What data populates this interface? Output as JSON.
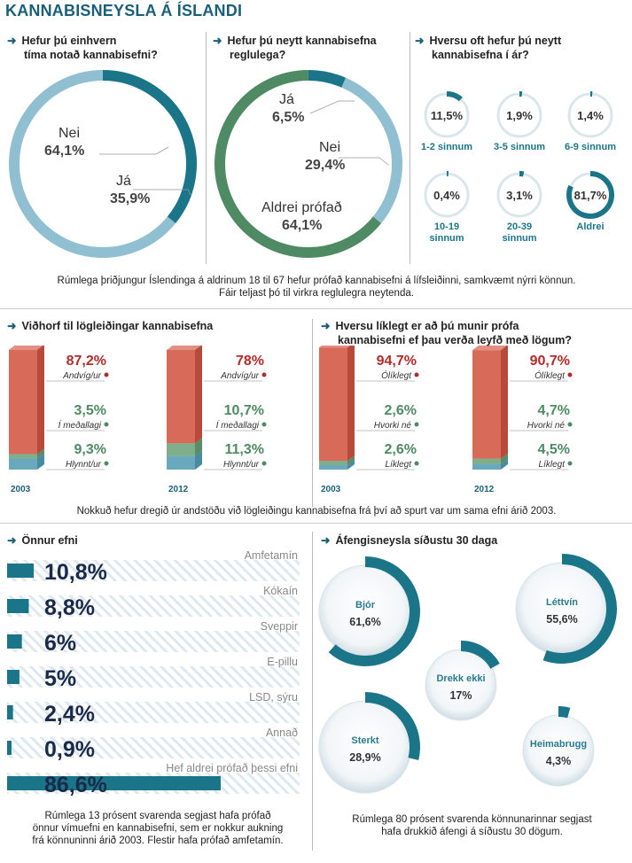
{
  "title": "KANNABISNEYSLA Á ÍSLANDI",
  "colors": {
    "teal": "#1b7588",
    "light_blue": "#8fbfd0",
    "green": "#4e8a63",
    "red": "#d86a5a",
    "dark_red": "#b32b2b",
    "title_blue": "#1a5f7a"
  },
  "q1": {
    "heading": [
      "Hefur þú einhvern",
      "tíma notað kannabisefni?"
    ]
  },
  "q2": {
    "heading": [
      "Hefur þú neytt kannabisefna",
      "reglulega?"
    ]
  },
  "q3": {
    "heading": [
      "Hversu oft hefur þú neytt",
      "kannabisefna í ár?"
    ]
  },
  "caption1": [
    "Rúmlega þriðjungur Íslendinga á aldrinum 18 til 67 hefur prófað kannabisefni á lífsleiðinni, samkvæmt nýrri könnun.",
    "Fáir teljast þó til virkra reglulegra neytenda."
  ],
  "q4": {
    "heading": "Viðhorf til lögleiðingar kannabisefna"
  },
  "q5": {
    "heading": [
      "Hversu líklegt er að þú munir prófa",
      "kannabisefni ef þau verða leyfð með lögum?"
    ]
  },
  "caption2": "Nokkuð hefur dregið úr andstöðu við lögleiðingu kannabisefna frá því að spurt var um sama efni árið 2003.",
  "q6": {
    "heading": "Önnur efni"
  },
  "caption3": [
    "Rúmlega 13 prósent svarenda segjast hafa prófað",
    "önnur vímuefni en kannabisefni, sem er nokkur aukning",
    "frá könnuninni árið 2003. Flestir hafa prófað amfetamín."
  ],
  "q7": {
    "heading": "Áfengisneysla síðustu 30 daga"
  },
  "caption4": [
    "Rúmlega 80 prósent svarenda könnunarinnar segjast",
    "hafa drukkið áfengi á síðustu 30 dögum."
  ],
  "chart_data": [
    {
      "type": "pie",
      "title": "Hefur þú einhvern tíma notað kannabisefni?",
      "labels": [
        "Nei",
        "Já"
      ],
      "values": [
        64.1,
        35.9
      ],
      "value_labels": [
        "64,1%",
        "35,9%"
      ]
    },
    {
      "type": "pie",
      "title": "Hefur þú neytt kannabisefna reglulega?",
      "labels": [
        "Já",
        "Nei",
        "Aldrei prófað"
      ],
      "values": [
        6.5,
        29.4,
        64.1
      ],
      "value_labels": [
        "6,5%",
        "29,4%",
        "64,1%"
      ]
    },
    {
      "type": "pie",
      "title": "Hversu oft hefur þú neytt kannabisefna í ár?",
      "labels": [
        "1-2 sinnum",
        "3-5 sinnum",
        "6-9 sinnum",
        "10-19 sinnum",
        "20-39 sinnum",
        "Aldrei"
      ],
      "values": [
        11.5,
        1.9,
        1.4,
        0.4,
        3.1,
        81.7
      ],
      "value_labels": [
        "11,5%",
        "1,9%",
        "1,4%",
        "0,4%",
        "3,1%",
        "81,7%"
      ]
    },
    {
      "type": "bar",
      "title": "Viðhorf til lögleiðingar kannabisefna",
      "categories": [
        "2003",
        "2012"
      ],
      "series": [
        {
          "name": "Andvíg/ur",
          "values": [
            87.2,
            78
          ],
          "value_labels": [
            "87,2%",
            "78%"
          ]
        },
        {
          "name": "Í meðallagi",
          "values": [
            3.5,
            10.7
          ],
          "value_labels": [
            "3,5%",
            "10,7%"
          ]
        },
        {
          "name": "Hlynnt/ur",
          "values": [
            9.3,
            11.3
          ],
          "value_labels": [
            "9,3%",
            "11,3%"
          ]
        }
      ]
    },
    {
      "type": "bar",
      "title": "Hversu líklegt er að þú munir prófa kannabisefni ef þau verða leyfð með lögum?",
      "categories": [
        "2003",
        "2012"
      ],
      "series": [
        {
          "name": "Ólíklegt",
          "values": [
            94.7,
            90.7
          ],
          "value_labels": [
            "94,7%",
            "90,7%"
          ]
        },
        {
          "name": "Hvorki né",
          "values": [
            2.6,
            4.7
          ],
          "value_labels": [
            "2,6%",
            "4,7%"
          ]
        },
        {
          "name": "Líklegt",
          "values": [
            2.6,
            4.5
          ],
          "value_labels": [
            "2,6%",
            "4,5%"
          ]
        }
      ]
    },
    {
      "type": "bar",
      "title": "Önnur efni",
      "categories": [
        "Amfetamín",
        "Kókaín",
        "Sveppir",
        "E-pillu",
        "LSD, sýru",
        "Annað",
        "Hef aldrei prófað þessi efni"
      ],
      "values": [
        10.8,
        8.8,
        6,
        5,
        2.4,
        0.9,
        86.6
      ],
      "value_labels": [
        "10,8%",
        "8,8%",
        "6%",
        "5%",
        "2,4%",
        "0,9%",
        "86,6%"
      ]
    },
    {
      "type": "pie",
      "title": "Áfengisneysla síðustu 30 daga",
      "labels": [
        "Bjór",
        "Léttvín",
        "Drekk ekki",
        "Sterkt",
        "Heimabrugg"
      ],
      "values": [
        61.6,
        55.6,
        17,
        28.9,
        4.3
      ],
      "value_labels": [
        "61,6%",
        "55,6%",
        "17%",
        "28,9%",
        "4,3%"
      ]
    }
  ]
}
